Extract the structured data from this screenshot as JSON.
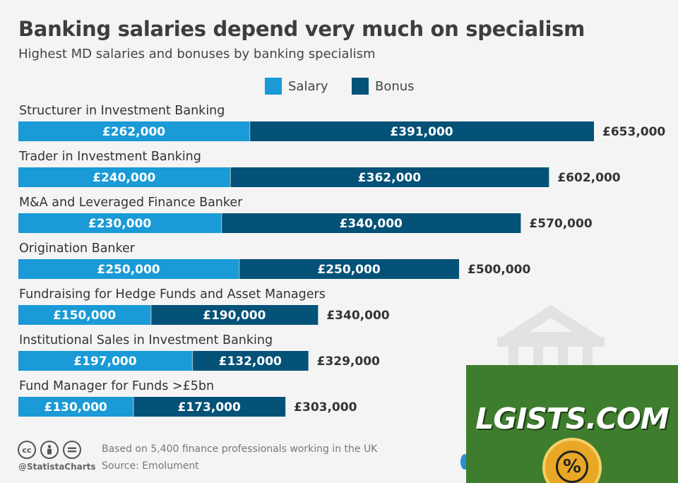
{
  "header": {
    "title": "Banking salaries depend very much on specialism",
    "subtitle": "Highest MD salaries and bonuses by banking specialism"
  },
  "legend": [
    {
      "label": "Salary",
      "color": "#1a9ad6"
    },
    {
      "label": "Bonus",
      "color": "#045278"
    }
  ],
  "chart_data": {
    "type": "bar",
    "orientation": "horizontal",
    "stacked": true,
    "title": "Banking salaries depend very much on specialism",
    "subtitle": "Highest MD salaries and bonuses by banking specialism",
    "categories": [
      "Structurer in Investment Banking",
      "Trader in Investment Banking",
      "M&A and Leveraged Finance Banker",
      "Origination Banker",
      "Fundraising for Hedge Funds and Asset Managers",
      "Institutional Sales in Investment Banking",
      "Fund Manager for Funds >£5bn"
    ],
    "series": [
      {
        "name": "Salary",
        "color": "#1a9ad6",
        "values": [
          262000,
          240000,
          230000,
          250000,
          150000,
          197000,
          130000
        ],
        "labels": [
          "£262,000",
          "£240,000",
          "£230,000",
          "£250,000",
          "£150,000",
          "£197,000",
          "£130,000"
        ]
      },
      {
        "name": "Bonus",
        "color": "#045278",
        "values": [
          391000,
          362000,
          340000,
          250000,
          190000,
          132000,
          173000
        ],
        "labels": [
          "£391,000",
          "£362,000",
          "£340,000",
          "£250,000",
          "£190,000",
          "£132,000",
          "£173,000"
        ]
      }
    ],
    "totals": [
      653000,
      602000,
      570000,
      500000,
      340000,
      329000,
      303000
    ],
    "total_labels": [
      "£653,000",
      "£602,000",
      "£570,000",
      "£500,000",
      "£340,000",
      "£329,000",
      "£303,000"
    ],
    "legend_position": "top-center",
    "grid": false,
    "xlim": [
      0,
      653000
    ]
  },
  "footer": {
    "handle": "@StatistaCharts",
    "note": "Based on 5,400 finance professionals working in the UK",
    "source": "Source: Emolument",
    "license_icons": [
      "cc-icon",
      "person-icon",
      "equals-icon"
    ]
  },
  "overlay": {
    "text": "LGISTS.COM",
    "background": "#3f7d2e",
    "badge_symbol": "%"
  },
  "watermark": {
    "icon": "bank-building-icon"
  }
}
